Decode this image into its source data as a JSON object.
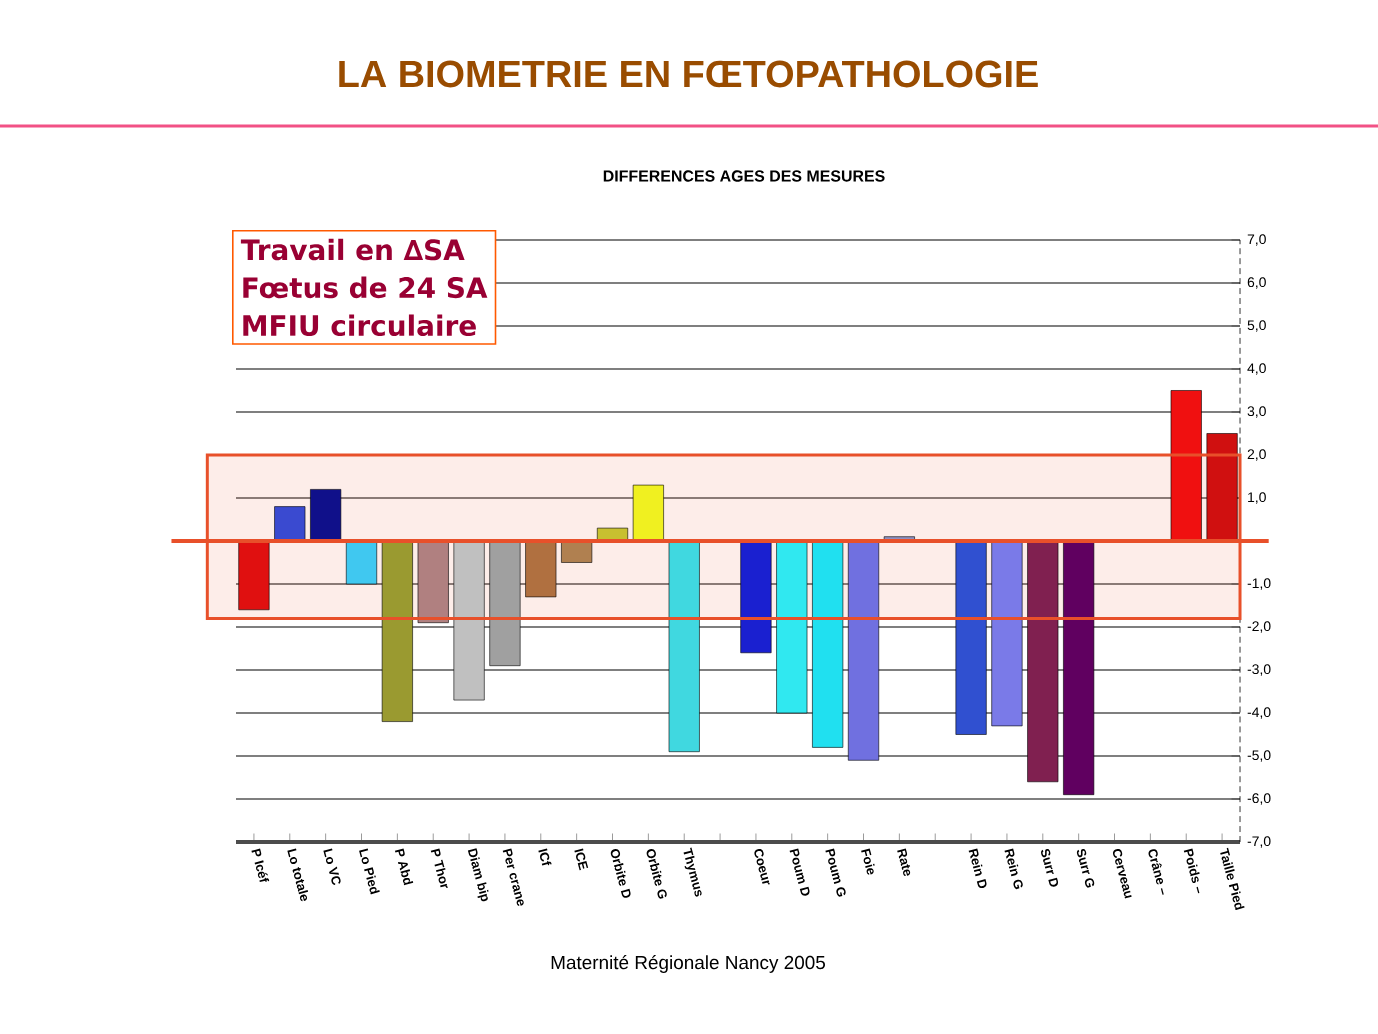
{
  "chart_data": {
    "type": "bar",
    "title": "LA BIOMETRIE EN FŒTOPATHOLOGIE",
    "subtitle": "DIFFERENCES AGES DES MESURES",
    "categories": [
      "P Icéf",
      "Lo totale",
      "Lo VC",
      "Lo Pied",
      "P Abd",
      "P Thor",
      "Diam bip",
      "Per crane",
      "ICf",
      "ICE",
      "Orbite D",
      "Orbite G",
      "Thymus",
      null,
      "Coeur",
      "Poum D",
      "Poum G",
      "Foie",
      "Rate",
      null,
      "Rein D",
      "Rein G",
      "Surr D",
      "Surr G",
      "Cerveau",
      "Crâne –",
      "Poids –",
      "Taille Pied"
    ],
    "values": [
      -1.6,
      0.8,
      1.2,
      -1.0,
      -4.2,
      -1.9,
      -3.7,
      -2.9,
      -1.3,
      -0.5,
      0.3,
      1.3,
      -4.9,
      null,
      -2.6,
      -4.0,
      -4.8,
      -5.1,
      0.1,
      null,
      -4.5,
      -4.3,
      -5.6,
      -5.9,
      null,
      null,
      3.5,
      2.5
    ],
    "colors": [
      "#e01010",
      "#3a4ad0",
      "#10108a",
      "#40c8f0",
      "#9a9a30",
      "#b08080",
      "#c0c0c0",
      "#a0a0a0",
      "#b07040",
      "#b08050",
      "#c8c030",
      "#f0f020",
      "#40d8e0",
      null,
      "#1a20d0",
      "#30e8f0",
      "#20e0f0",
      "#7070e0",
      "#9090c0",
      null,
      "#3050d0",
      "#7a7ae8",
      "#802050",
      "#600060",
      null,
      null,
      "#f01010",
      "#d01010"
    ],
    "ylim": [
      -7,
      7
    ],
    "yticks": [
      {
        "value": 7,
        "label": "7,0"
      },
      {
        "value": 6,
        "label": "6,0"
      },
      {
        "value": 5,
        "label": "5,0"
      },
      {
        "value": 4,
        "label": "4,0"
      },
      {
        "value": 3,
        "label": "3,0"
      },
      {
        "value": 2,
        "label": "2,0"
      },
      {
        "value": 1,
        "label": "1,0"
      },
      {
        "value": 0,
        "label": null
      },
      {
        "value": -1,
        "label": "-1,0"
      },
      {
        "value": -2,
        "label": "-2,0"
      },
      {
        "value": -3,
        "label": "-3,0"
      },
      {
        "value": -4,
        "label": "-4,0"
      },
      {
        "value": -5,
        "label": "-5,0"
      },
      {
        "value": -6,
        "label": "-6,0"
      },
      {
        "value": -7,
        "label": "-7,0"
      }
    ],
    "grid": "y",
    "ref_lines": [
      {
        "axis": "y",
        "value": 0,
        "color": "#e8502a"
      }
    ],
    "bands": [
      {
        "axis": "y",
        "from": -1.8,
        "to": 2.0,
        "color": "#e8502a"
      }
    ],
    "annotations": [
      "Travail en ∆SA",
      "Fœtus de 24 SA",
      "MFIU circulaire",
      "Maternité Régionale Nancy 2005"
    ]
  }
}
